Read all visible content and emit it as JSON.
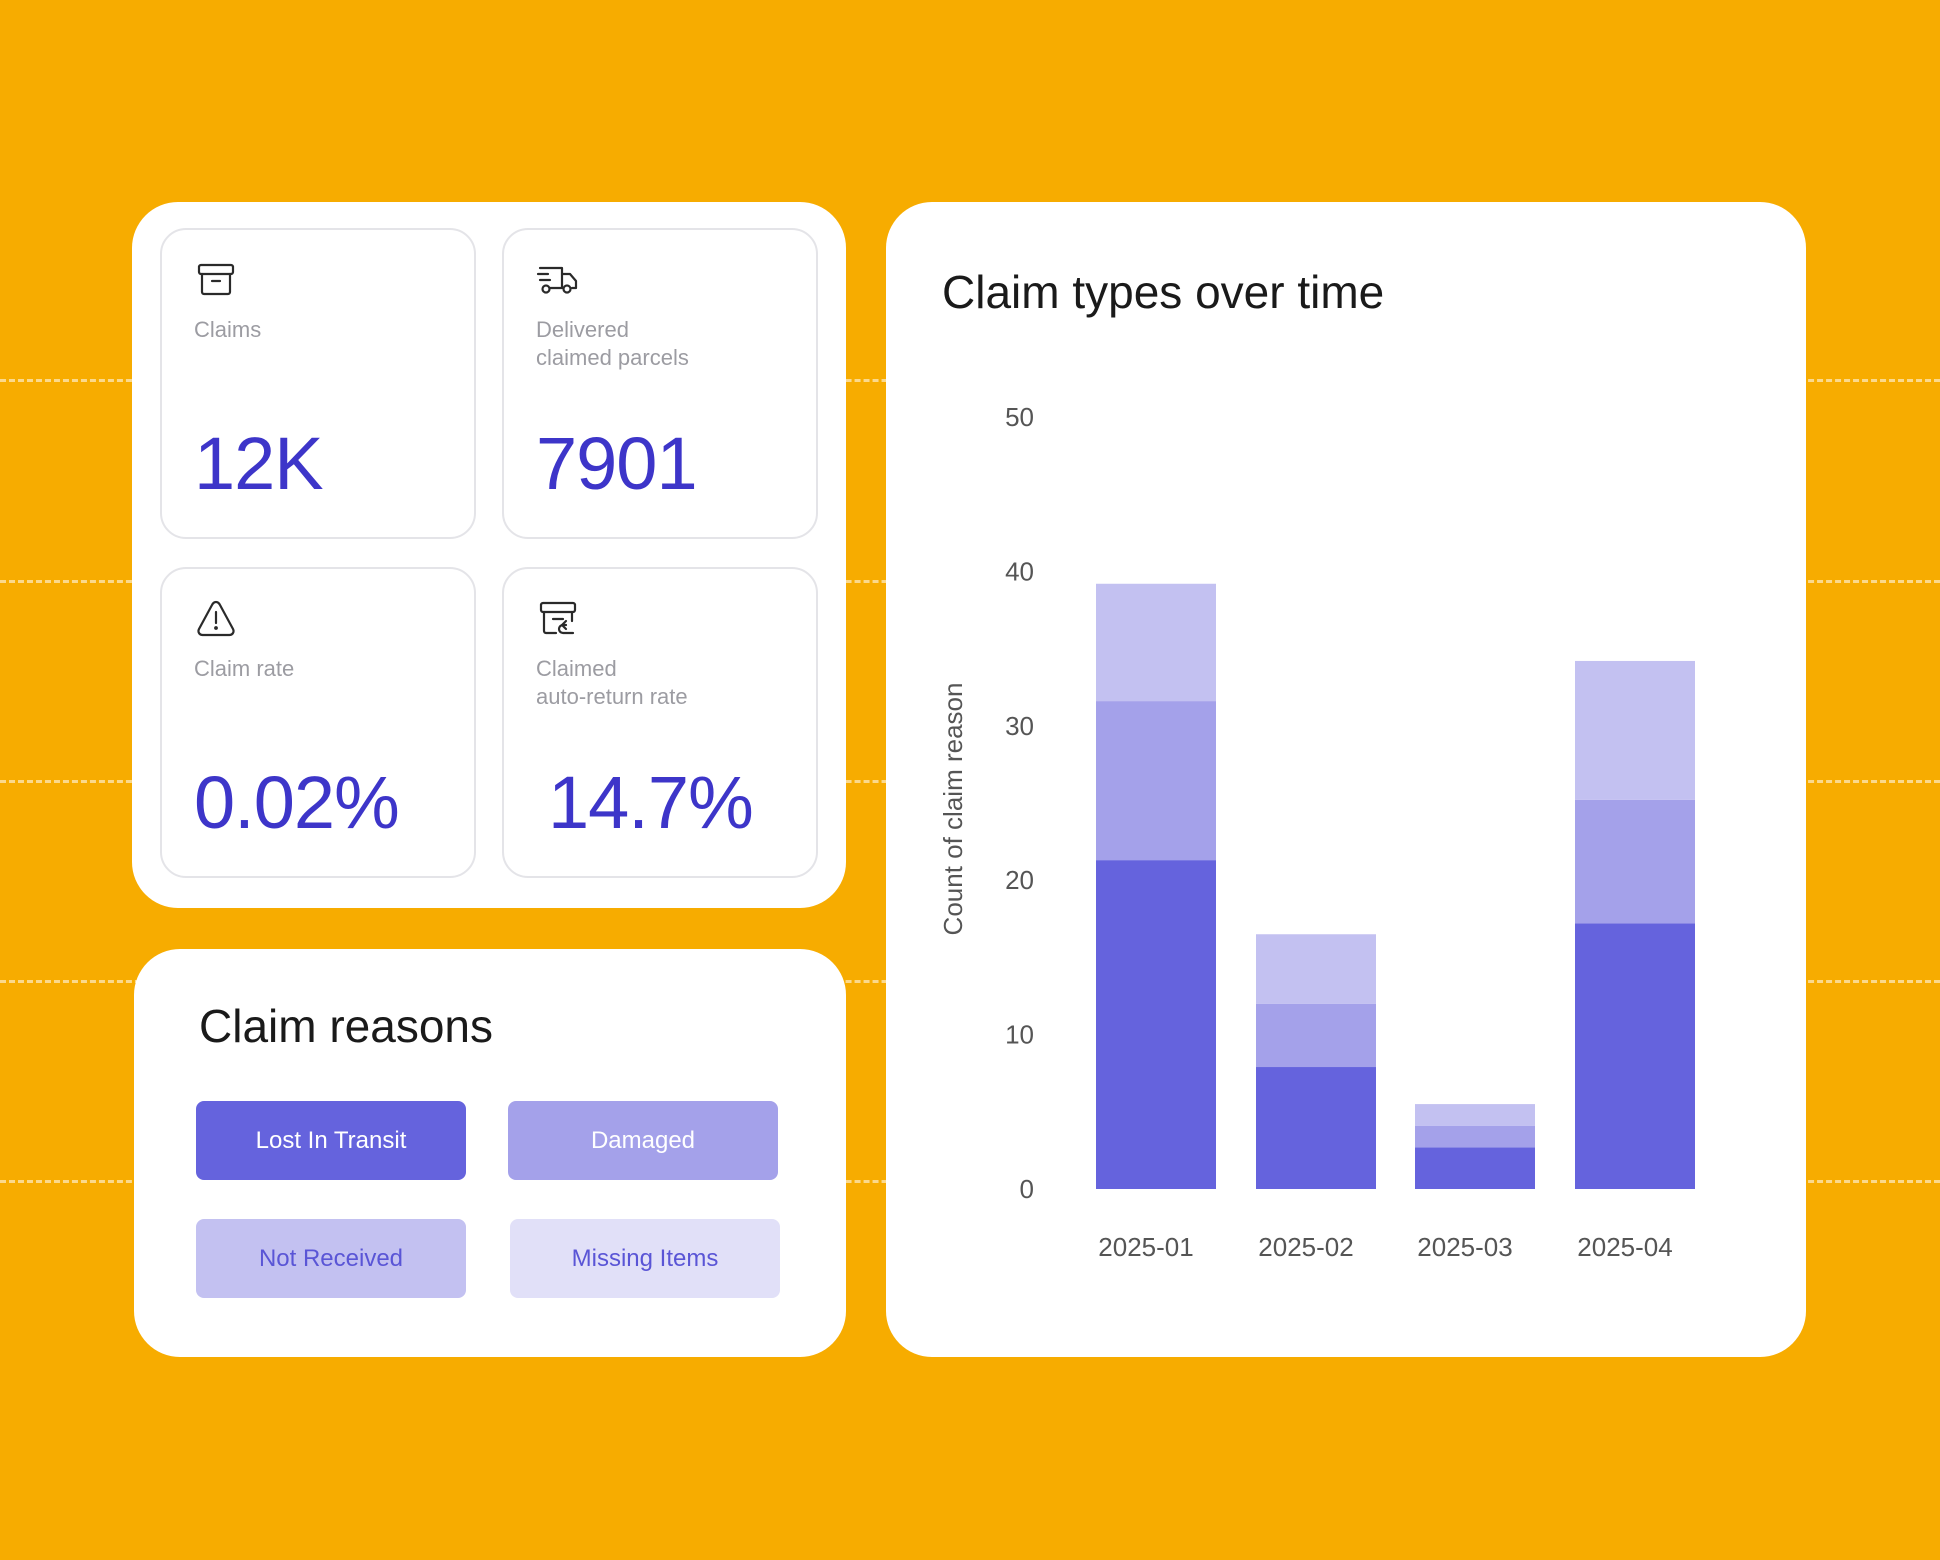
{
  "kpis": {
    "claims": {
      "label": "Claims",
      "value": "12K",
      "icon": "archive-box-icon"
    },
    "delivered": {
      "label": "Delivered\nclaimed parcels",
      "value": "7901",
      "icon": "delivery-truck-icon"
    },
    "claim_rate": {
      "label": "Claim rate",
      "value": "0.02%",
      "icon": "warning-triangle-icon"
    },
    "auto_return": {
      "label": "Claimed\nauto-return rate",
      "value": "14.7%",
      "icon": "return-box-icon"
    }
  },
  "reasons": {
    "title": "Claim reasons",
    "items": [
      {
        "label": "Lost In Transit",
        "bg": "#6563DD",
        "fg": "#FFFFFF"
      },
      {
        "label": "Damaged",
        "bg": "#A4A1EA",
        "fg": "#FFFFFF"
      },
      {
        "label": "Not Received",
        "bg": "#C3C1F1",
        "fg": "#5A55D6"
      },
      {
        "label": "Missing Items",
        "bg": "#E1E0F8",
        "fg": "#5A55D6"
      }
    ]
  },
  "chart": {
    "title": "Claim types over time"
  },
  "colors": {
    "background": "#F7AC00",
    "accent": "#3D35C9"
  },
  "chart_data": {
    "type": "bar",
    "stacked": true,
    "title": "Claim types over time",
    "xlabel": "",
    "ylabel": "Count of claim reason",
    "ylim": [
      0,
      50
    ],
    "yticks": [
      0,
      10,
      20,
      30,
      40,
      50
    ],
    "categories": [
      "2025-01",
      "2025-02",
      "2025-03",
      "2025-04"
    ],
    "series": [
      {
        "color": "#6563DD",
        "values": [
          21.3,
          7.9,
          2.7,
          17.2
        ]
      },
      {
        "color": "#A4A1EA",
        "values": [
          10.3,
          4.1,
          1.4,
          8.0
        ]
      },
      {
        "color": "#C3C1F1",
        "values": [
          7.6,
          4.5,
          1.4,
          9.0
        ]
      }
    ],
    "grid": false,
    "legend": "none"
  }
}
